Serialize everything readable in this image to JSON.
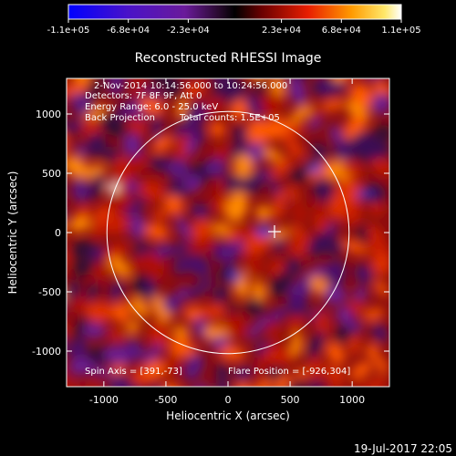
{
  "colorbar": {
    "tick_labels": [
      "-1.1e+05",
      "-6.8e+04",
      "-2.3e+04",
      "2.3e+04",
      "6.8e+04",
      "1.1e+05"
    ]
  },
  "chart_data": {
    "type": "heatmap",
    "title": "Reconstructed RHESSI Image",
    "xlabel": "Heliocentric X (arcsec)",
    "ylabel": "Heliocentric Y (arcsec)",
    "xlim": [
      -1300,
      1300
    ],
    "ylim": [
      -1300,
      1300
    ],
    "x_ticks": [
      -1000,
      -500,
      0,
      500,
      1000
    ],
    "y_ticks": [
      -1000,
      -500,
      0,
      500,
      1000
    ],
    "value_range": [
      -110000,
      110000
    ],
    "colormap": "blue-purple-red-yellow-white",
    "solar_limb_radius_arcsec": 975,
    "flare_position": [
      -926,
      304
    ],
    "annotations": [
      "2-Nov-2014 10:14:56.000 to 10:24:56.000",
      "Detectors: 7F 8F 9F, Att 0",
      "Energy Range: 6.0 - 25.0 keV",
      "Back Projection",
      "Total counts: 1.5E+05"
    ],
    "spin_axis_label": "Spin Axis = [391,-73]",
    "flare_position_label": "Flare Position = [-926,304]"
  },
  "timestamp": "19-Jul-2017 22:05"
}
